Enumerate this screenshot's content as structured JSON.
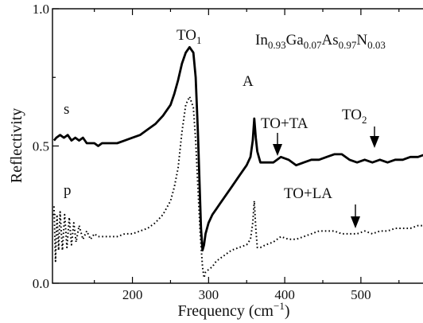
{
  "chart_data": {
    "type": "line",
    "title": "",
    "xlabel": "Frequency (cm",
    "xlabel_sup": "−1",
    "xlabel_end": ")",
    "ylabel": "Reflectivity",
    "xlim": [
      95,
      592
    ],
    "ylim": [
      0.0,
      1.0
    ],
    "xticks": [
      200,
      300,
      400,
      500
    ],
    "xtick_labels": [
      "200",
      "300",
      "400",
      "500"
    ],
    "yticks": [
      0.0,
      0.5,
      1.0
    ],
    "ytick_labels": [
      "0.0",
      "0.5",
      "1.0"
    ],
    "composition": {
      "parts": [
        {
          "t": "In",
          "s": "0.93"
        },
        {
          "t": "Ga",
          "s": "0.07"
        },
        {
          "t": "As",
          "s": "0.97"
        },
        {
          "t": "N",
          "s": "0.03"
        }
      ]
    },
    "series": [
      {
        "name": "s",
        "style": "solid",
        "color": "#000000",
        "x": [
          97,
          100,
          105,
          110,
          115,
          120,
          125,
          130,
          135,
          140,
          145,
          150,
          155,
          160,
          170,
          180,
          190,
          200,
          210,
          220,
          230,
          240,
          250,
          255,
          260,
          265,
          270,
          275,
          280,
          283,
          286,
          288,
          290,
          292,
          294,
          296,
          300,
          305,
          310,
          315,
          320,
          330,
          340,
          345,
          350,
          355,
          358,
          360,
          362,
          364,
          368,
          375,
          385,
          395,
          405,
          415,
          425,
          435,
          445,
          455,
          465,
          470,
          475,
          485,
          495,
          505,
          515,
          525,
          535,
          545,
          555,
          565,
          575,
          585,
          592
        ],
        "y": [
          0.52,
          0.53,
          0.54,
          0.53,
          0.54,
          0.52,
          0.53,
          0.52,
          0.53,
          0.51,
          0.51,
          0.51,
          0.5,
          0.51,
          0.51,
          0.51,
          0.52,
          0.53,
          0.54,
          0.56,
          0.58,
          0.61,
          0.65,
          0.69,
          0.74,
          0.8,
          0.84,
          0.86,
          0.84,
          0.75,
          0.55,
          0.38,
          0.2,
          0.12,
          0.14,
          0.18,
          0.22,
          0.25,
          0.27,
          0.29,
          0.31,
          0.35,
          0.39,
          0.41,
          0.43,
          0.46,
          0.52,
          0.6,
          0.53,
          0.48,
          0.44,
          0.44,
          0.44,
          0.46,
          0.45,
          0.43,
          0.44,
          0.45,
          0.45,
          0.46,
          0.47,
          0.47,
          0.47,
          0.45,
          0.44,
          0.45,
          0.44,
          0.45,
          0.44,
          0.45,
          0.45,
          0.46,
          0.46,
          0.47,
          0.47
        ]
      },
      {
        "name": "p",
        "style": "dotted",
        "color": "#000000",
        "x": [
          97,
          99,
          101,
          103,
          105,
          108,
          111,
          114,
          117,
          120,
          123,
          126,
          130,
          135,
          140,
          145,
          150,
          155,
          160,
          170,
          180,
          190,
          200,
          210,
          220,
          230,
          240,
          250,
          255,
          260,
          265,
          270,
          275,
          280,
          283,
          286,
          289,
          292,
          294,
          296,
          300,
          305,
          310,
          320,
          330,
          340,
          350,
          355,
          358,
          360,
          362,
          364,
          368,
          375,
          385,
          395,
          405,
          415,
          425,
          435,
          445,
          455,
          465,
          475,
          485,
          495,
          505,
          515,
          525,
          535,
          545,
          555,
          565,
          575,
          585,
          592
        ],
        "y": [
          0.28,
          0.08,
          0.25,
          0.12,
          0.26,
          0.12,
          0.25,
          0.13,
          0.24,
          0.14,
          0.22,
          0.15,
          0.21,
          0.16,
          0.19,
          0.16,
          0.18,
          0.17,
          0.17,
          0.17,
          0.17,
          0.18,
          0.18,
          0.19,
          0.2,
          0.22,
          0.25,
          0.3,
          0.35,
          0.42,
          0.55,
          0.65,
          0.68,
          0.64,
          0.52,
          0.35,
          0.18,
          0.06,
          0.02,
          0.04,
          0.05,
          0.06,
          0.08,
          0.1,
          0.12,
          0.13,
          0.14,
          0.16,
          0.22,
          0.3,
          0.2,
          0.13,
          0.13,
          0.14,
          0.15,
          0.17,
          0.16,
          0.16,
          0.17,
          0.18,
          0.19,
          0.19,
          0.19,
          0.18,
          0.18,
          0.18,
          0.19,
          0.18,
          0.19,
          0.19,
          0.2,
          0.2,
          0.2,
          0.21,
          0.21,
          0.21
        ]
      }
    ],
    "annotations": [
      {
        "id": "s",
        "text": "s",
        "sub": ""
      },
      {
        "id": "p",
        "text": "p",
        "sub": ""
      },
      {
        "id": "to1",
        "text": "TO",
        "sub": "1"
      },
      {
        "id": "a",
        "text": "A",
        "sub": ""
      },
      {
        "id": "tota",
        "text": "TO+TA",
        "sub": ""
      },
      {
        "id": "to2",
        "text": "TO",
        "sub": "2"
      },
      {
        "id": "tola",
        "text": "TO+LA",
        "sub": ""
      }
    ]
  }
}
